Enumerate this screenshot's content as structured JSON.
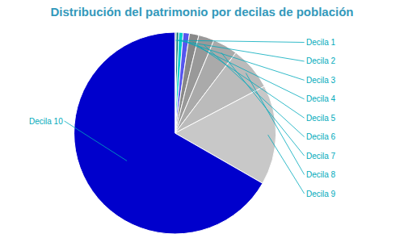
{
  "chart_data": {
    "type": "pie",
    "title": "Distribución del patrimonio por decilas de población",
    "categories": [
      "Decila 1",
      "Decila 2",
      "Decila 3",
      "Decila 4",
      "Decila 5",
      "Decila 6",
      "Decila 7",
      "Decila 8",
      "Decila 9",
      "Decila 10"
    ],
    "values": [
      0.2,
      0.4,
      0.7,
      1.0,
      1.5,
      2.5,
      4.0,
      7.0,
      16.0,
      66.7
    ],
    "colors": [
      "#004D4D",
      "#007070",
      "#00CCCC",
      "#5555EE",
      "#888888",
      "#999999",
      "#AAAAAA",
      "#BBBBBB",
      "#C8C8C8",
      "#0000CC"
    ]
  }
}
